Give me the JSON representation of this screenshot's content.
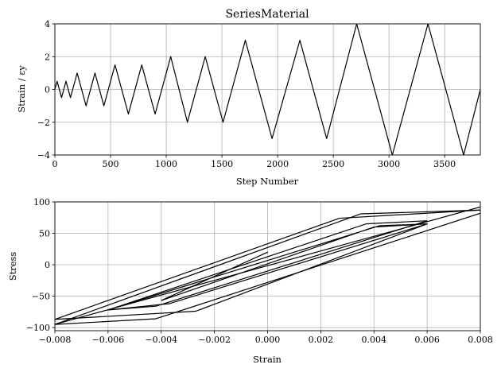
{
  "chart_data": [
    {
      "type": "line",
      "title": "SeriesMaterial",
      "xlabel": "Step Number",
      "ylabel": "Strain / εy",
      "xlim": [
        0,
        3820
      ],
      "ylim": [
        -4,
        4
      ],
      "xticks": [
        0,
        500,
        1000,
        1500,
        2000,
        2500,
        3000,
        3500
      ],
      "yticks": [
        -4,
        -2,
        0,
        2,
        4
      ],
      "xtick_labels": [
        "0",
        "500",
        "1000",
        "1500",
        "2000",
        "2500",
        "3000",
        "3500"
      ],
      "ytick_labels": [
        "−4",
        "−2",
        "0",
        "2",
        "4"
      ],
      "grid": true,
      "series": [
        {
          "x": [
            0,
            20,
            60,
            100,
            140,
            200,
            280,
            360,
            440,
            540,
            660,
            780,
            900,
            1040,
            1190,
            1350,
            1510,
            1710,
            1950,
            2200,
            2440,
            2710,
            3030,
            3350,
            3670,
            3820
          ],
          "y": [
            0,
            0.5,
            -0.5,
            0.5,
            -0.5,
            1,
            -1,
            1,
            -1,
            1.5,
            -1.5,
            1.5,
            -1.5,
            2,
            -2,
            2,
            -2,
            3,
            -3,
            3,
            -3,
            4,
            -4,
            4,
            -4,
            0
          ]
        }
      ]
    },
    {
      "type": "line",
      "title": "",
      "xlabel": "Strain",
      "ylabel": "Stress",
      "xlim": [
        -0.008,
        0.008
      ],
      "ylim": [
        -105,
        100
      ],
      "xticks": [
        -0.008,
        -0.006,
        -0.004,
        -0.002,
        0.0,
        0.002,
        0.004,
        0.006,
        0.008
      ],
      "yticks": [
        -100,
        -50,
        0,
        50,
        100
      ],
      "xtick_labels": [
        "−0.008",
        "−0.006",
        "−0.004",
        "−0.002",
        "0.000",
        "0.002",
        "0.004",
        "0.006",
        "0.008"
      ],
      "ytick_labels": [
        "−100",
        "−50",
        "0",
        "50",
        "100"
      ],
      "grid": true,
      "series": [
        {
          "x": [
            -0.004,
            0.0,
            -0.004
          ],
          "y": [
            -57,
            20,
            -57
          ]
        },
        {
          "x": [
            -0.004,
            0.004,
            0.006,
            0.0042,
            -0.006,
            -0.0042,
            0.006
          ],
          "y": [
            -57,
            60,
            65,
            62,
            -72,
            -66,
            70
          ]
        },
        {
          "x": [
            0.006,
            0.0037,
            -0.006,
            -0.0037,
            0.006
          ],
          "y": [
            70,
            65,
            -72,
            -62,
            65
          ]
        },
        {
          "x": [
            0.006,
            -0.0027,
            -0.008,
            0.0027,
            0.008
          ],
          "y": [
            65,
            -74,
            -87,
            74,
            87
          ]
        },
        {
          "x": [
            0.008,
            0.0035,
            -0.008,
            -0.0042,
            0.008
          ],
          "y": [
            87,
            81,
            -95,
            -86,
            82
          ]
        },
        {
          "x": [
            0.008,
            -0.008
          ],
          "y": [
            92,
            -95
          ]
        }
      ]
    }
  ]
}
